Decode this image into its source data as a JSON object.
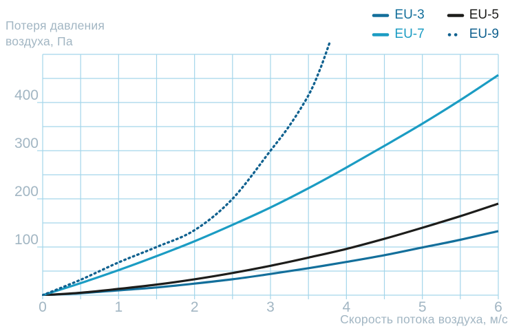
{
  "chart_data": {
    "type": "line",
    "title": "",
    "y_axis": {
      "title_lines": [
        "Потеря давления",
        "воздуха, Па"
      ],
      "min": 0,
      "max": 500,
      "grid_step": 50,
      "tick_step": 100,
      "ticks": [
        "100",
        "200",
        "300",
        "400"
      ],
      "tick_values": [
        100,
        200,
        300,
        400
      ]
    },
    "x_axis": {
      "title": "Скорость потока воздуха, м/с",
      "min": 0,
      "max": 6,
      "grid_step": 0.5,
      "tick_step": 1,
      "ticks": [
        "0",
        "1",
        "2",
        "3",
        "4",
        "5",
        "6"
      ],
      "tick_values": [
        0,
        1,
        2,
        3,
        4,
        5,
        6
      ]
    },
    "grid": "on",
    "grid_color": "#a3d5ea",
    "axis_text_color": "#a2b6c3",
    "legend_position": "top-right",
    "series": [
      {
        "name": "EU-3",
        "color": "#136f9b",
        "style": "solid",
        "points": [
          [
            0,
            0
          ],
          [
            0.5,
            4
          ],
          [
            1,
            10
          ],
          [
            1.5,
            16
          ],
          [
            2,
            24
          ],
          [
            2.5,
            33
          ],
          [
            3,
            44
          ],
          [
            3.5,
            56
          ],
          [
            4,
            69
          ],
          [
            4.5,
            83
          ],
          [
            5,
            99
          ],
          [
            5.5,
            115
          ],
          [
            6,
            133
          ]
        ]
      },
      {
        "name": "EU-5",
        "color": "#1d1d1b",
        "style": "solid",
        "points": [
          [
            0,
            0
          ],
          [
            0.5,
            5
          ],
          [
            1,
            13
          ],
          [
            1.5,
            22
          ],
          [
            2,
            33
          ],
          [
            2.5,
            46
          ],
          [
            3,
            61
          ],
          [
            3.5,
            78
          ],
          [
            4,
            96
          ],
          [
            4.5,
            117
          ],
          [
            5,
            140
          ],
          [
            5.5,
            164
          ],
          [
            6,
            190
          ]
        ]
      },
      {
        "name": "EU-7",
        "color": "#1b9cc3",
        "style": "solid",
        "points": [
          [
            0,
            0
          ],
          [
            0.5,
            25
          ],
          [
            1,
            52
          ],
          [
            1.5,
            81
          ],
          [
            2,
            112
          ],
          [
            2.5,
            146
          ],
          [
            3,
            182
          ],
          [
            3.5,
            222
          ],
          [
            4,
            265
          ],
          [
            4.5,
            310
          ],
          [
            5,
            356
          ],
          [
            5.5,
            405
          ],
          [
            6,
            457
          ]
        ]
      },
      {
        "name": "EU-9",
        "color": "#10618f",
        "style": "dotted",
        "points": [
          [
            0,
            0
          ],
          [
            0.5,
            32
          ],
          [
            1,
            68
          ],
          [
            1.5,
            100
          ],
          [
            2,
            135
          ],
          [
            2.5,
            200
          ],
          [
            3,
            300
          ],
          [
            3.25,
            352
          ],
          [
            3.5,
            415
          ],
          [
            3.65,
            468
          ],
          [
            3.78,
            525
          ]
        ]
      }
    ]
  }
}
